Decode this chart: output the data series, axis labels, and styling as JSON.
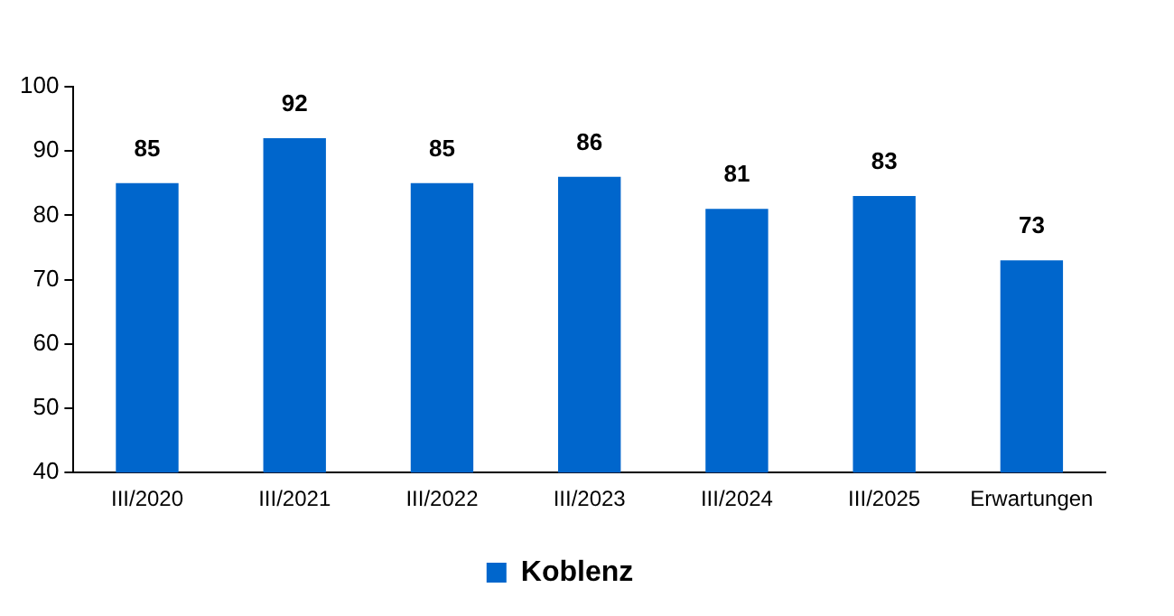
{
  "chart_data": {
    "type": "bar",
    "categories": [
      "III/2020",
      "III/2021",
      "III/2022",
      "III/2023",
      "III/2024",
      "III/2025",
      "Erwartungen"
    ],
    "series": [
      {
        "name": "Koblenz",
        "color": "#0066cc",
        "values": [
          85,
          92,
          85,
          86,
          81,
          83,
          73
        ]
      }
    ],
    "ylim": [
      40,
      100
    ],
    "yticks": [
      40,
      50,
      60,
      70,
      80,
      90,
      100
    ],
    "grid": false,
    "legend": "bottom",
    "data_labels": true
  }
}
